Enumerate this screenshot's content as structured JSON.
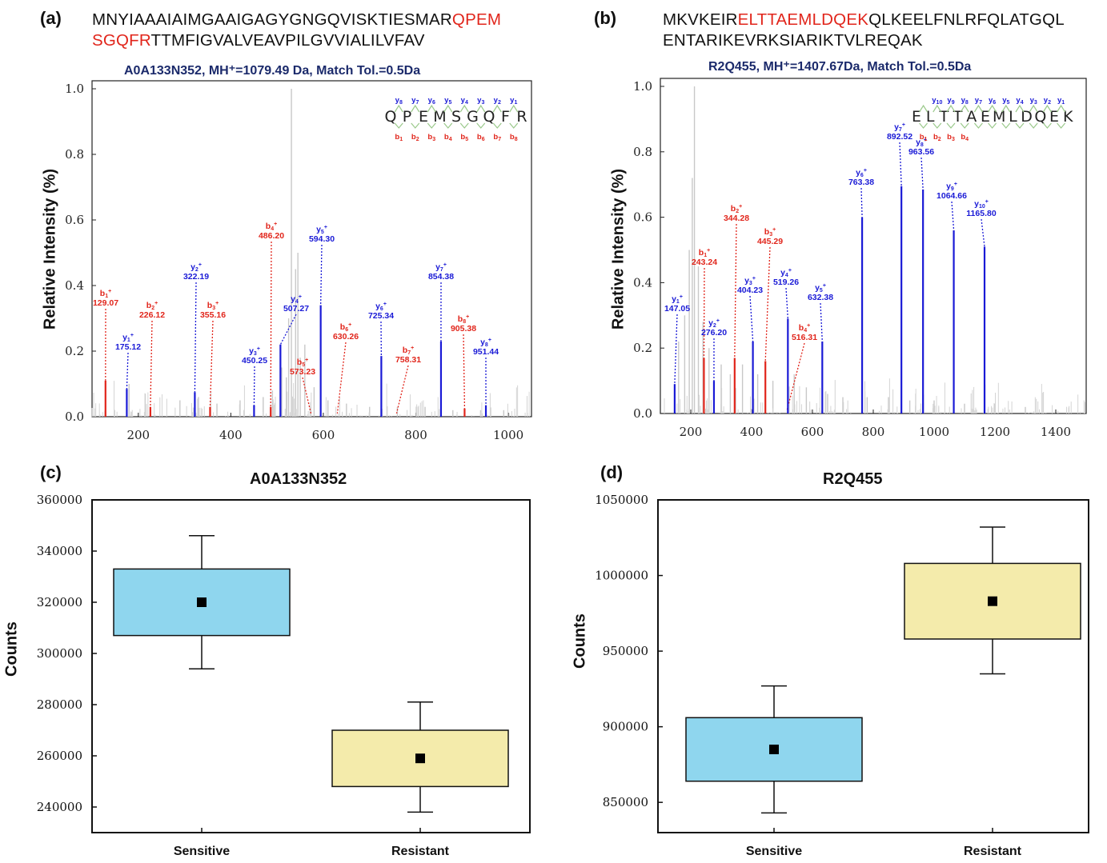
{
  "panels": {
    "a": {
      "label": "(a)",
      "seq_line1_pre": "MNYIAAAIAIMGAAIGAGYGNGQVISKTIESMAR",
      "seq_line1_hl": "QPEM",
      "seq_line2_hl": "SGQFR",
      "seq_line2_post": "TTMFIGVALVEAVPILGVVIALILVFAV",
      "subtitle": "A0A133N352, MH⁺=1079.49 Da, Match Tol.=0.5Da"
    },
    "b": {
      "label": "(b)",
      "seq_line1_pre": "MKVKEIR",
      "seq_line1_hl": "ELTTAEMLDQEK",
      "seq_line1_post": "QLKEELFNLRFQLATGQL",
      "seq_line2_post": "ENTARIKEVRKSIARIKTVLREQAK",
      "subtitle": "R2Q455, MH⁺=1407.67Da, Match Tol.=0.5Da"
    },
    "c": {
      "label": "(c)",
      "title": "A0A133N352"
    },
    "d": {
      "label": "(d)",
      "title": "R2Q455"
    }
  },
  "y_axis_label_spectrum": "Relative Intensity (%)",
  "y_axis_label_counts": "Counts",
  "colors": {
    "b_ion": "#e1251b",
    "y_ion": "#1a1ad6",
    "sensitive": "#8fd6ee",
    "resistant": "#f4ebab",
    "noise": "#c8c8c8"
  },
  "chart_data": [
    {
      "type": "bar",
      "panel": "a",
      "xlim": [
        100,
        1050
      ],
      "ylim": [
        0,
        1.0
      ],
      "x_ticks": [
        200,
        400,
        600,
        800,
        1000
      ],
      "y_ticks": [
        "0.0",
        "0.2",
        "0.4",
        "0.6",
        "0.8",
        "1.0"
      ],
      "peptide": [
        "Q",
        "P",
        "E",
        "M",
        "S",
        "G",
        "Q",
        "F",
        "R"
      ],
      "y_ion_header": [
        "y8",
        "y7",
        "y6",
        "y5",
        "y4",
        "y3",
        "y2",
        "y1"
      ],
      "b_ion_header": [
        "b1",
        "b2",
        "b3",
        "b4",
        "b5",
        "b6",
        "b7",
        "b8"
      ],
      "peaks": [
        {
          "ion": "b",
          "n": "1",
          "mz": 129.07,
          "label": "129.07",
          "intensity": 0.11
        },
        {
          "ion": "y",
          "n": "1",
          "mz": 175.12,
          "label": "175.12",
          "intensity": 0.085
        },
        {
          "ion": "b",
          "n": "2",
          "mz": 226.12,
          "label": "226.12",
          "intensity": 0.03
        },
        {
          "ion": "y",
          "n": "2",
          "mz": 322.19,
          "label": "322.19",
          "intensity": 0.075
        },
        {
          "ion": "b",
          "n": "3",
          "mz": 355.16,
          "label": "355.16",
          "intensity": 0.03
        },
        {
          "ion": "y",
          "n": "3",
          "mz": 450.25,
          "label": "450.25",
          "intensity": 0.035
        },
        {
          "ion": "b",
          "n": "4",
          "mz": 486.2,
          "label": "486.20",
          "intensity": 0.03
        },
        {
          "ion": "y",
          "n": "4",
          "mz": 507.27,
          "label": "507.27",
          "intensity": 0.22
        },
        {
          "ion": "b",
          "n": "5",
          "mz": 573.23,
          "label": "573.23",
          "intensity": 0.0
        },
        {
          "ion": "y",
          "n": "5",
          "mz": 594.3,
          "label": "594.30",
          "intensity": 0.34
        },
        {
          "ion": "b",
          "n": "6",
          "mz": 630.26,
          "label": "630.26",
          "intensity": 0.0
        },
        {
          "ion": "y",
          "n": "6",
          "mz": 725.34,
          "label": "725.34",
          "intensity": 0.185
        },
        {
          "ion": "b",
          "n": "7",
          "mz": 758.31,
          "label": "758.31",
          "intensity": 0.0
        },
        {
          "ion": "y",
          "n": "7",
          "mz": 854.38,
          "label": "854.38",
          "intensity": 0.23
        },
        {
          "ion": "b",
          "n": "8",
          "mz": 905.38,
          "label": "905.38",
          "intensity": 0.025
        },
        {
          "ion": "y",
          "n": "8",
          "mz": 951.44,
          "label": "951.44",
          "intensity": 0.035
        }
      ],
      "noise_peaks": [
        [
          531,
          1.0
        ],
        [
          545,
          0.5
        ],
        [
          540,
          0.45
        ],
        [
          525,
          0.3
        ],
        [
          560,
          0.22
        ],
        [
          510,
          0.15
        ],
        [
          180,
          0.1
        ],
        [
          215,
          0.07
        ],
        [
          290,
          0.05
        ],
        [
          330,
          0.06
        ],
        [
          370,
          0.04
        ],
        [
          420,
          0.05
        ],
        [
          470,
          0.06
        ],
        [
          490,
          0.08
        ],
        [
          520,
          0.12
        ],
        [
          550,
          0.18
        ],
        [
          580,
          0.09
        ],
        [
          610,
          0.05
        ],
        [
          650,
          0.04
        ],
        [
          700,
          0.03
        ],
        [
          760,
          0.03
        ],
        [
          820,
          0.03
        ],
        [
          880,
          0.02
        ],
        [
          940,
          0.02
        ],
        [
          990,
          0.02
        ]
      ]
    },
    {
      "type": "bar",
      "panel": "b",
      "xlim": [
        100,
        1500
      ],
      "ylim": [
        0,
        1.0
      ],
      "x_ticks": [
        200,
        400,
        600,
        800,
        1000,
        1200,
        1400
      ],
      "y_ticks": [
        "0.0",
        "0.2",
        "0.4",
        "0.6",
        "0.8",
        "1.0"
      ],
      "peptide": [
        "E",
        "L",
        "T",
        "T",
        "A",
        "E",
        "M",
        "L",
        "D",
        "Q",
        "E",
        "K"
      ],
      "y_ion_header": [
        "y10",
        "y9",
        "y8",
        "y7",
        "y6",
        "y5",
        "y4",
        "y3",
        "y2",
        "y1"
      ],
      "b_ion_header": [
        "b1",
        "b2",
        "b3",
        "b4"
      ],
      "peaks": [
        {
          "ion": "y",
          "n": "1",
          "mz": 147.05,
          "label": "147.05",
          "intensity": 0.09
        },
        {
          "ion": "b",
          "n": "1",
          "mz": 243.24,
          "label": "243.24",
          "intensity": 0.17
        },
        {
          "ion": "y",
          "n": "2",
          "mz": 276.2,
          "label": "276.20",
          "intensity": 0.1
        },
        {
          "ion": "b",
          "n": "2",
          "mz": 344.28,
          "label": "344.28",
          "intensity": 0.17
        },
        {
          "ion": "y",
          "n": "3",
          "mz": 404.23,
          "label": "404.23",
          "intensity": 0.22
        },
        {
          "ion": "b",
          "n": "3",
          "mz": 445.29,
          "label": "445.29",
          "intensity": 0.16
        },
        {
          "ion": "b",
          "n": "4",
          "mz": 516.31,
          "label": "516.31",
          "intensity": 0.0
        },
        {
          "ion": "y",
          "n": "4",
          "mz": 519.26,
          "label": "519.26",
          "intensity": 0.29
        },
        {
          "ion": "y",
          "n": "5",
          "mz": 632.38,
          "label": "632.38",
          "intensity": 0.22
        },
        {
          "ion": "y",
          "n": "6",
          "mz": 763.38,
          "label": "763.38",
          "intensity": 0.6
        },
        {
          "ion": "y",
          "n": "7",
          "mz": 892.52,
          "label": "892.52",
          "intensity": 0.695
        },
        {
          "ion": "y",
          "n": "8",
          "mz": 963.56,
          "label": "963.56",
          "intensity": 0.685
        },
        {
          "ion": "y",
          "n": "9",
          "mz": 1064.66,
          "label": "1064.66",
          "intensity": 0.56
        },
        {
          "ion": "y",
          "n": "10",
          "mz": 1165.8,
          "label": "1165.80",
          "intensity": 0.51
        }
      ],
      "noise_peaks": [
        [
          212,
          1.0
        ],
        [
          205,
          0.72
        ],
        [
          195,
          0.5
        ],
        [
          225,
          0.45
        ],
        [
          180,
          0.3
        ],
        [
          160,
          0.22
        ],
        [
          240,
          0.28
        ],
        [
          260,
          0.2
        ],
        [
          300,
          0.15
        ],
        [
          330,
          0.12
        ],
        [
          370,
          0.15
        ],
        [
          420,
          0.12
        ],
        [
          470,
          0.1
        ],
        [
          540,
          0.12
        ],
        [
          580,
          0.08
        ],
        [
          650,
          0.06
        ],
        [
          700,
          0.05
        ],
        [
          780,
          0.05
        ],
        [
          850,
          0.05
        ],
        [
          920,
          0.04
        ],
        [
          1000,
          0.04
        ],
        [
          1100,
          0.03
        ],
        [
          1200,
          0.03
        ],
        [
          1300,
          0.02
        ]
      ]
    },
    {
      "type": "box",
      "panel": "c",
      "title": "A0A133N352",
      "ylabel": "Counts",
      "ylim": [
        230000,
        360000
      ],
      "y_ticks": [
        240000,
        260000,
        280000,
        300000,
        320000,
        340000,
        360000
      ],
      "categories": [
        "Sensitive",
        "Resistant"
      ],
      "boxes": [
        {
          "name": "Sensitive",
          "whisker_low": 294000,
          "q1": 307000,
          "q3": 333000,
          "whisker_high": 346000,
          "mean": 320000
        },
        {
          "name": "Resistant",
          "whisker_low": 238000,
          "q1": 248000,
          "q3": 270000,
          "whisker_high": 281000,
          "mean": 259000
        }
      ]
    },
    {
      "type": "box",
      "panel": "d",
      "title": "R2Q455",
      "ylabel": "Counts",
      "ylim": [
        830000,
        1050000
      ],
      "y_ticks": [
        850000,
        900000,
        950000,
        1000000,
        1050000
      ],
      "categories": [
        "Sensitive",
        "Resistant"
      ],
      "boxes": [
        {
          "name": "Sensitive",
          "whisker_low": 843000,
          "q1": 864000,
          "q3": 906000,
          "whisker_high": 927000,
          "mean": 885000
        },
        {
          "name": "Resistant",
          "whisker_low": 935000,
          "q1": 958000,
          "q3": 1008000,
          "whisker_high": 1032000,
          "mean": 983000
        }
      ]
    }
  ]
}
